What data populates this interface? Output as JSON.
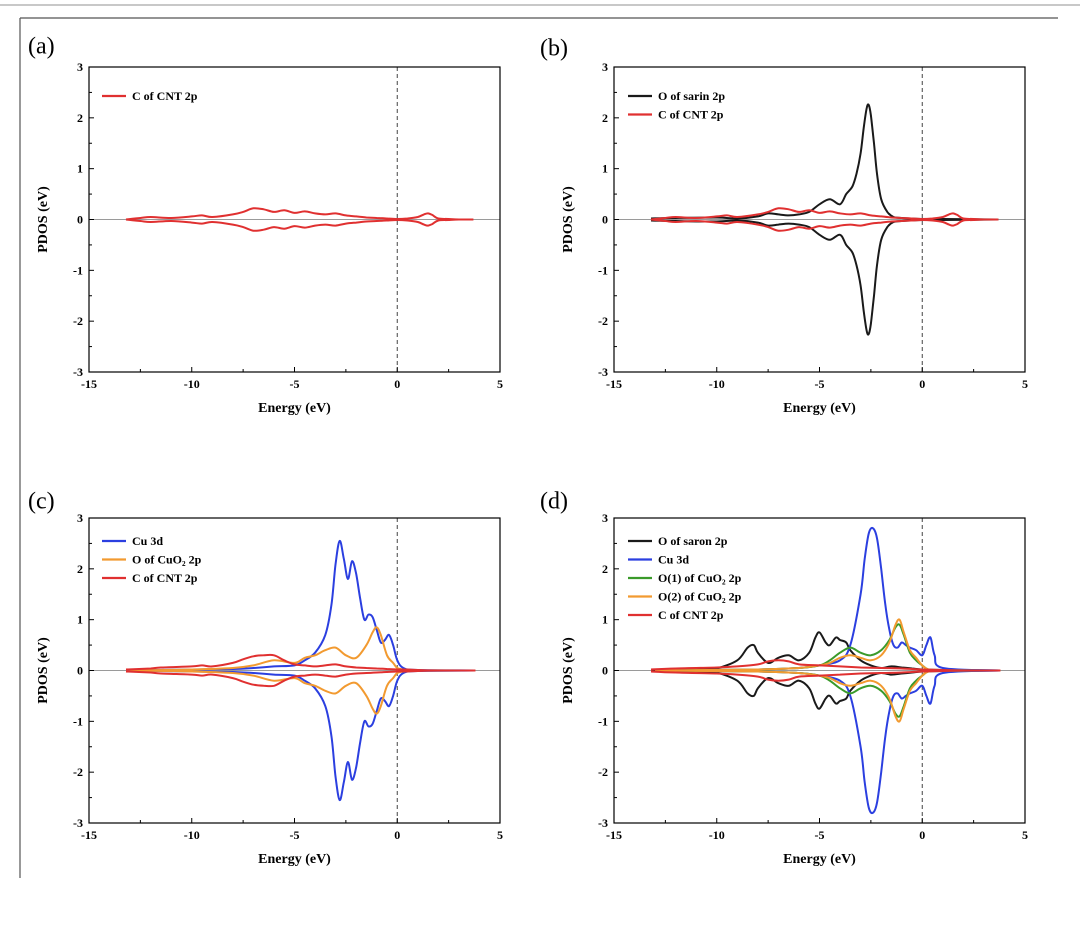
{
  "chart_data": [
    {
      "panel": "(a)",
      "type": "line",
      "xlabel": "Energy (eV)",
      "ylabel": "PDOS (eV)",
      "xlim": [
        -15,
        5
      ],
      "ylim": [
        -3,
        3
      ],
      "xticks": [
        -15,
        -10,
        -5,
        0,
        5
      ],
      "yticks": [
        -3,
        -2,
        -1,
        0,
        1,
        2,
        3
      ],
      "fermi_level": 0,
      "legend_position": "top-left",
      "series": [
        {
          "name": "C of CNT 2p",
          "color": "#e03030",
          "x": [
            -13.2,
            -12.5,
            -12.0,
            -11.0,
            -10.0,
            -9.5,
            -9.0,
            -8.0,
            -7.5,
            -7.0,
            -6.5,
            -6.0,
            -5.5,
            -5.0,
            -4.5,
            -4.0,
            -3.5,
            -3.0,
            -2.5,
            -2.0,
            -1.5,
            -1.0,
            -0.5,
            0.0,
            0.5,
            1.0,
            1.3,
            1.5,
            1.7,
            2.0,
            2.5,
            3.0,
            3.7
          ],
          "y": [
            0.0,
            0.03,
            0.05,
            0.03,
            0.06,
            0.08,
            0.05,
            0.1,
            0.15,
            0.22,
            0.2,
            0.15,
            0.18,
            0.13,
            0.16,
            0.12,
            0.1,
            0.12,
            0.08,
            0.06,
            0.04,
            0.03,
            0.02,
            0.01,
            0.02,
            0.05,
            0.1,
            0.12,
            0.09,
            0.02,
            0.01,
            0.0,
            0.0
          ]
        }
      ]
    },
    {
      "panel": "(b)",
      "type": "line",
      "xlabel": "Energy (eV)",
      "ylabel": "PDOS (eV)",
      "xlim": [
        -15,
        5
      ],
      "ylim": [
        -3,
        3
      ],
      "xticks": [
        -15,
        -10,
        -5,
        0,
        5
      ],
      "yticks": [
        -3,
        -2,
        -1,
        0,
        1,
        2,
        3
      ],
      "fermi_level": 0,
      "legend_position": "top-left",
      "series": [
        {
          "name": "O of sarin 2p",
          "color": "#1a1a1a",
          "x": [
            -13.2,
            -12.0,
            -10.0,
            -9.0,
            -8.0,
            -7.5,
            -7.0,
            -6.5,
            -6.0,
            -5.5,
            -5.0,
            -4.5,
            -4.0,
            -3.7,
            -3.4,
            -3.2,
            -3.0,
            -2.85,
            -2.7,
            -2.6,
            -2.5,
            -2.35,
            -2.2,
            -2.0,
            -1.7,
            -1.4,
            -1.0,
            0.0,
            1.0,
            3.7
          ],
          "y": [
            0.02,
            0.03,
            0.04,
            0.02,
            0.06,
            0.12,
            0.1,
            0.08,
            0.1,
            0.15,
            0.3,
            0.4,
            0.3,
            0.5,
            0.65,
            0.9,
            1.3,
            1.8,
            2.2,
            2.25,
            2.05,
            1.5,
            0.9,
            0.4,
            0.15,
            0.05,
            0.03,
            0.01,
            0.01,
            0.0
          ]
        },
        {
          "name": "C of CNT 2p",
          "color": "#e03030",
          "x": [
            -13.2,
            -12.5,
            -12.0,
            -11.0,
            -10.0,
            -9.5,
            -9.0,
            -8.0,
            -7.5,
            -7.0,
            -6.5,
            -6.0,
            -5.5,
            -5.0,
            -4.5,
            -4.0,
            -3.5,
            -3.0,
            -2.5,
            -2.0,
            -1.5,
            -1.0,
            -0.5,
            0.0,
            0.5,
            1.0,
            1.3,
            1.5,
            1.7,
            2.0,
            2.5,
            3.0,
            3.7
          ],
          "y": [
            0.0,
            0.03,
            0.05,
            0.03,
            0.06,
            0.08,
            0.05,
            0.1,
            0.15,
            0.22,
            0.2,
            0.15,
            0.18,
            0.13,
            0.16,
            0.12,
            0.1,
            0.12,
            0.08,
            0.06,
            0.04,
            0.03,
            0.02,
            0.01,
            0.02,
            0.05,
            0.1,
            0.12,
            0.09,
            0.02,
            0.01,
            0.0,
            0.0
          ]
        }
      ]
    },
    {
      "panel": "(c)",
      "type": "line",
      "xlabel": "Energy (eV)",
      "ylabel": "PDOS (eV)",
      "xlim": [
        -15,
        5
      ],
      "ylim": [
        -3,
        3
      ],
      "xticks": [
        -15,
        -10,
        -5,
        0,
        5
      ],
      "yticks": [
        -3,
        -2,
        -1,
        0,
        1,
        2,
        3
      ],
      "fermi_level": 0,
      "legend_position": "top-left",
      "series": [
        {
          "name": "Cu 3d",
          "color": "#2b3fe0",
          "x": [
            -13.0,
            -10.0,
            -8.0,
            -7.0,
            -6.0,
            -5.0,
            -4.5,
            -4.0,
            -3.5,
            -3.2,
            -3.0,
            -2.8,
            -2.6,
            -2.4,
            -2.2,
            -2.0,
            -1.8,
            -1.6,
            -1.4,
            -1.2,
            -1.0,
            -0.8,
            -0.6,
            -0.4,
            -0.2,
            0.0,
            0.3,
            1.0,
            3.8
          ],
          "y": [
            0.0,
            0.02,
            0.03,
            0.05,
            0.08,
            0.1,
            0.2,
            0.35,
            0.7,
            1.3,
            2.1,
            2.55,
            2.2,
            1.8,
            2.15,
            1.9,
            1.4,
            1.0,
            1.1,
            1.05,
            0.8,
            0.55,
            0.6,
            0.7,
            0.5,
            0.2,
            0.05,
            0.01,
            0.0
          ]
        },
        {
          "name": "O of CuO₂ 2p",
          "color": "#f29a30",
          "x": [
            -13.0,
            -10.0,
            -8.0,
            -7.0,
            -6.0,
            -5.0,
            -4.5,
            -4.0,
            -3.5,
            -3.0,
            -2.5,
            -2.0,
            -1.5,
            -1.2,
            -1.0,
            -0.8,
            -0.5,
            -0.2,
            0.0,
            0.3,
            1.0,
            3.8
          ],
          "y": [
            0.0,
            0.02,
            0.05,
            0.1,
            0.2,
            0.15,
            0.25,
            0.3,
            0.4,
            0.45,
            0.3,
            0.25,
            0.5,
            0.75,
            0.85,
            0.7,
            0.3,
            0.15,
            0.05,
            0.02,
            0.0,
            0.0
          ]
        },
        {
          "name": "C of CNT 2p",
          "color": "#e03030",
          "x": [
            -13.2,
            -12.0,
            -11.5,
            -10.0,
            -9.5,
            -9.0,
            -8.0,
            -7.5,
            -7.0,
            -6.5,
            -6.0,
            -5.5,
            -5.0,
            -4.5,
            -4.0,
            -3.5,
            -3.0,
            -2.5,
            -2.0,
            -1.5,
            -1.0,
            -0.5,
            0.0,
            0.5,
            1.0,
            2.0,
            3.8
          ],
          "y": [
            0.02,
            0.04,
            0.06,
            0.08,
            0.1,
            0.08,
            0.15,
            0.22,
            0.28,
            0.3,
            0.3,
            0.2,
            0.12,
            0.1,
            0.08,
            0.1,
            0.12,
            0.08,
            0.06,
            0.05,
            0.04,
            0.03,
            0.02,
            0.02,
            0.01,
            0.0,
            0.0
          ]
        }
      ]
    },
    {
      "panel": "(d)",
      "type": "line",
      "xlabel": "Energy (eV)",
      "ylabel": "PDOS (eV)",
      "xlim": [
        -15,
        5
      ],
      "ylim": [
        -3,
        3
      ],
      "xticks": [
        -15,
        -10,
        -5,
        0,
        5
      ],
      "yticks": [
        -3,
        -2,
        -1,
        0,
        1,
        2,
        3
      ],
      "fermi_level": 0,
      "legend_position": "top-left",
      "series": [
        {
          "name": "O of saron 2p",
          "color": "#1a1a1a",
          "x": [
            -13.2,
            -11.0,
            -10.5,
            -10.0,
            -9.0,
            -8.5,
            -8.2,
            -8.0,
            -7.5,
            -7.0,
            -6.5,
            -6.0,
            -5.5,
            -5.2,
            -5.0,
            -4.7,
            -4.5,
            -4.2,
            -4.0,
            -3.7,
            -3.5,
            -3.0,
            -2.5,
            -2.0,
            -1.5,
            -1.0,
            -0.5,
            0.0,
            1.0,
            3.8
          ],
          "y": [
            0.0,
            0.02,
            0.05,
            0.04,
            0.2,
            0.45,
            0.5,
            0.35,
            0.15,
            0.25,
            0.3,
            0.2,
            0.35,
            0.65,
            0.75,
            0.55,
            0.5,
            0.65,
            0.6,
            0.55,
            0.4,
            0.2,
            0.1,
            0.05,
            0.08,
            0.06,
            0.04,
            0.02,
            0.01,
            0.0
          ]
        },
        {
          "name": "Cu 3d",
          "color": "#2b3fe0",
          "x": [
            -13.0,
            -8.0,
            -6.0,
            -5.0,
            -4.0,
            -3.5,
            -3.0,
            -2.8,
            -2.6,
            -2.4,
            -2.2,
            -2.0,
            -1.8,
            -1.6,
            -1.4,
            -1.2,
            -1.0,
            -0.8,
            -0.6,
            -0.3,
            0.0,
            0.2,
            0.4,
            0.6,
            1.0,
            3.8
          ],
          "y": [
            0.0,
            0.02,
            0.05,
            0.1,
            0.2,
            0.5,
            1.5,
            2.2,
            2.7,
            2.8,
            2.6,
            2.0,
            1.3,
            0.8,
            0.5,
            0.45,
            0.55,
            0.5,
            0.45,
            0.4,
            0.3,
            0.5,
            0.65,
            0.3,
            0.05,
            0.0
          ]
        },
        {
          "name": "O(1) of CuO₂ 2p",
          "color": "#3a9a2a",
          "x": [
            -13.0,
            -8.0,
            -6.0,
            -5.0,
            -4.5,
            -4.0,
            -3.5,
            -3.0,
            -2.5,
            -2.0,
            -1.6,
            -1.3,
            -1.1,
            -0.9,
            -0.6,
            -0.3,
            0.0,
            0.3,
            1.0,
            3.8
          ],
          "y": [
            0.0,
            0.02,
            0.05,
            0.1,
            0.2,
            0.35,
            0.45,
            0.35,
            0.3,
            0.4,
            0.6,
            0.85,
            0.9,
            0.7,
            0.35,
            0.2,
            0.1,
            0.02,
            0.0,
            0.0
          ]
        },
        {
          "name": "O(2) of CuO₂ 2p",
          "color": "#f29a30",
          "x": [
            -13.0,
            -8.0,
            -6.0,
            -5.0,
            -4.5,
            -4.0,
            -3.5,
            -3.0,
            -2.5,
            -2.0,
            -1.6,
            -1.3,
            -1.1,
            -0.9,
            -0.6,
            -0.3,
            0.0,
            0.3,
            1.0,
            3.8
          ],
          "y": [
            0.0,
            0.02,
            0.05,
            0.1,
            0.15,
            0.25,
            0.3,
            0.25,
            0.2,
            0.3,
            0.55,
            0.9,
            1.0,
            0.75,
            0.4,
            0.25,
            0.1,
            0.02,
            0.0,
            0.0
          ]
        },
        {
          "name": "C of CNT 2p",
          "color": "#e03030",
          "x": [
            -13.2,
            -12.0,
            -10.0,
            -9.0,
            -8.0,
            -7.5,
            -7.0,
            -6.5,
            -6.0,
            -5.0,
            -4.0,
            -3.0,
            -2.0,
            -1.0,
            0.0,
            1.0,
            2.0,
            3.8
          ],
          "y": [
            0.02,
            0.04,
            0.06,
            0.08,
            0.12,
            0.18,
            0.2,
            0.18,
            0.12,
            0.1,
            0.08,
            0.06,
            0.05,
            0.04,
            0.02,
            0.01,
            0.0,
            0.0
          ]
        }
      ]
    }
  ]
}
